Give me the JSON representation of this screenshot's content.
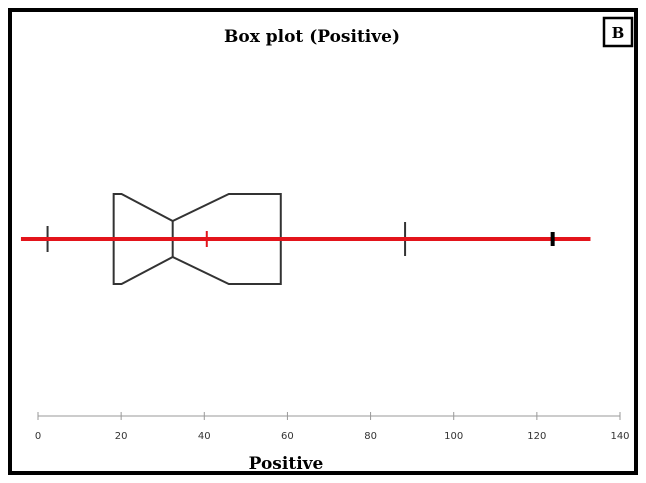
{
  "chart_data": {
    "type": "boxplot",
    "title": "Box plot (Positive)",
    "xlabel": "Positive",
    "panel_label": "B",
    "xlim": [
      0,
      140
    ],
    "ticks": [
      0,
      20,
      40,
      60,
      80,
      100,
      120,
      140
    ],
    "tick_labels": [
      "0",
      "20",
      "40",
      "60",
      "80",
      "100",
      "120",
      "140"
    ],
    "box": {
      "lower_whisker": 2.3,
      "q1": 18.2,
      "median": 32.4,
      "q3": 58.4,
      "upper_whisker": 88.3,
      "notch_low": 20.1,
      "notch_high": 45.9,
      "mean": 40.6,
      "outlier": 123.8
    },
    "reference_line": {
      "from": -4.1,
      "to": 132.9
    },
    "colors": {
      "box": "#333333",
      "reference_line": "#e3141b",
      "mean_marker": "#e3141b",
      "axis": "#999999"
    }
  }
}
